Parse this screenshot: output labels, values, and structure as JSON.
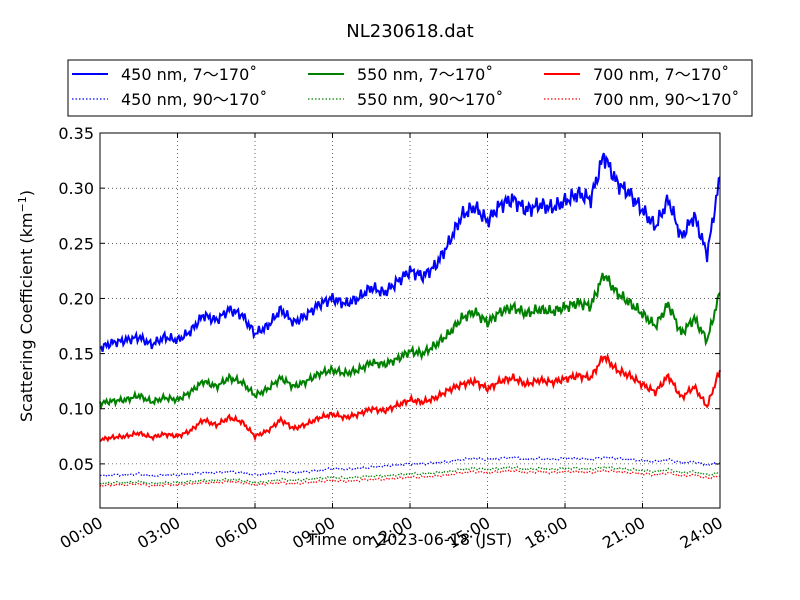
{
  "chart_data": {
    "type": "line",
    "title": "NL230618.dat",
    "xlabel": "Time on 2023-06-18 (JST)",
    "ylabel_prefix": "Scattering Coefficient (km",
    "ylabel_sup": "−1",
    "ylabel_suffix": ")",
    "x_unit": "hours",
    "xlim": [
      0,
      24
    ],
    "ylim": [
      0.01,
      0.35
    ],
    "grid": true,
    "legend_position": "top",
    "x_ticks": [
      {
        "value": 0,
        "label": "00:00"
      },
      {
        "value": 3,
        "label": "03:00"
      },
      {
        "value": 6,
        "label": "06:00"
      },
      {
        "value": 9,
        "label": "09:00"
      },
      {
        "value": 12,
        "label": "12:00"
      },
      {
        "value": 15,
        "label": "15:00"
      },
      {
        "value": 18,
        "label": "18:00"
      },
      {
        "value": 21,
        "label": "21:00"
      },
      {
        "value": 24,
        "label": "24:00"
      }
    ],
    "y_ticks": [
      {
        "value": 0.05,
        "label": "0.05"
      },
      {
        "value": 0.1,
        "label": "0.10"
      },
      {
        "value": 0.15,
        "label": "0.15"
      },
      {
        "value": 0.2,
        "label": "0.20"
      },
      {
        "value": 0.25,
        "label": "0.25"
      },
      {
        "value": 0.3,
        "label": "0.30"
      },
      {
        "value": 0.35,
        "label": "0.35"
      }
    ],
    "x": [
      0,
      0.5,
      1,
      1.5,
      2,
      2.5,
      3,
      3.5,
      4,
      4.5,
      5,
      5.5,
      6,
      6.5,
      7,
      7.5,
      8,
      8.5,
      9,
      9.5,
      10,
      10.5,
      11,
      11.5,
      12,
      12.5,
      13,
      13.5,
      14,
      14.5,
      15,
      15.5,
      16,
      16.5,
      17,
      17.5,
      18,
      18.5,
      19,
      19.5,
      20,
      20.5,
      21,
      21.5,
      22,
      22.5,
      23,
      23.5,
      24
    ],
    "series": [
      {
        "name": "450 nm, 7～170˚",
        "color": "#0000ff",
        "style": "solid",
        "values": [
          0.155,
          0.16,
          0.162,
          0.165,
          0.158,
          0.165,
          0.162,
          0.17,
          0.185,
          0.18,
          0.19,
          0.185,
          0.168,
          0.175,
          0.19,
          0.178,
          0.185,
          0.195,
          0.2,
          0.195,
          0.2,
          0.21,
          0.205,
          0.215,
          0.225,
          0.22,
          0.23,
          0.25,
          0.275,
          0.283,
          0.27,
          0.285,
          0.29,
          0.28,
          0.285,
          0.282,
          0.288,
          0.295,
          0.29,
          0.33,
          0.305,
          0.295,
          0.28,
          0.265,
          0.29,
          0.255,
          0.275,
          0.24,
          0.31
        ]
      },
      {
        "name": "450 nm, 90～170˚",
        "color": "#0000ff",
        "style": "dotted",
        "values": [
          0.039,
          0.04,
          0.04,
          0.041,
          0.039,
          0.04,
          0.04,
          0.041,
          0.042,
          0.042,
          0.043,
          0.042,
          0.04,
          0.041,
          0.043,
          0.042,
          0.043,
          0.044,
          0.046,
          0.045,
          0.046,
          0.047,
          0.048,
          0.049,
          0.05,
          0.05,
          0.051,
          0.052,
          0.054,
          0.055,
          0.054,
          0.055,
          0.056,
          0.054,
          0.055,
          0.054,
          0.055,
          0.055,
          0.054,
          0.056,
          0.055,
          0.054,
          0.053,
          0.052,
          0.054,
          0.051,
          0.052,
          0.049,
          0.051
        ]
      },
      {
        "name": "550 nm, 7～170˚",
        "color": "#008000",
        "style": "solid",
        "values": [
          0.105,
          0.107,
          0.108,
          0.112,
          0.106,
          0.11,
          0.108,
          0.115,
          0.125,
          0.12,
          0.128,
          0.124,
          0.112,
          0.118,
          0.128,
          0.12,
          0.125,
          0.132,
          0.135,
          0.132,
          0.135,
          0.142,
          0.14,
          0.145,
          0.152,
          0.15,
          0.158,
          0.168,
          0.182,
          0.188,
          0.178,
          0.188,
          0.192,
          0.186,
          0.19,
          0.188,
          0.192,
          0.196,
          0.193,
          0.222,
          0.205,
          0.196,
          0.186,
          0.175,
          0.195,
          0.168,
          0.182,
          0.162,
          0.205
        ]
      },
      {
        "name": "550 nm, 90～170˚",
        "color": "#008000",
        "style": "dotted",
        "values": [
          0.032,
          0.033,
          0.033,
          0.034,
          0.032,
          0.033,
          0.033,
          0.034,
          0.035,
          0.035,
          0.036,
          0.035,
          0.033,
          0.034,
          0.036,
          0.035,
          0.036,
          0.037,
          0.038,
          0.037,
          0.038,
          0.039,
          0.039,
          0.04,
          0.041,
          0.041,
          0.042,
          0.043,
          0.045,
          0.046,
          0.045,
          0.046,
          0.047,
          0.045,
          0.046,
          0.045,
          0.046,
          0.046,
          0.045,
          0.047,
          0.046,
          0.045,
          0.044,
          0.043,
          0.045,
          0.042,
          0.043,
          0.04,
          0.042
        ]
      },
      {
        "name": "700 nm, 7～170˚",
        "color": "#ff0000",
        "style": "solid",
        "values": [
          0.072,
          0.074,
          0.075,
          0.078,
          0.074,
          0.077,
          0.075,
          0.08,
          0.09,
          0.085,
          0.092,
          0.088,
          0.075,
          0.08,
          0.09,
          0.082,
          0.086,
          0.092,
          0.095,
          0.092,
          0.095,
          0.1,
          0.098,
          0.103,
          0.108,
          0.106,
          0.11,
          0.117,
          0.122,
          0.125,
          0.118,
          0.125,
          0.128,
          0.122,
          0.126,
          0.124,
          0.127,
          0.13,
          0.128,
          0.148,
          0.135,
          0.13,
          0.122,
          0.115,
          0.13,
          0.11,
          0.12,
          0.102,
          0.135
        ]
      },
      {
        "name": "700 nm, 90～170˚",
        "color": "#ff0000",
        "style": "dotted",
        "values": [
          0.03,
          0.031,
          0.031,
          0.032,
          0.03,
          0.031,
          0.031,
          0.032,
          0.033,
          0.033,
          0.034,
          0.033,
          0.031,
          0.032,
          0.033,
          0.032,
          0.033,
          0.034,
          0.035,
          0.034,
          0.035,
          0.036,
          0.036,
          0.037,
          0.038,
          0.038,
          0.039,
          0.04,
          0.042,
          0.043,
          0.042,
          0.043,
          0.044,
          0.042,
          0.043,
          0.042,
          0.043,
          0.043,
          0.042,
          0.044,
          0.043,
          0.042,
          0.041,
          0.04,
          0.042,
          0.039,
          0.04,
          0.037,
          0.039
        ]
      }
    ]
  }
}
